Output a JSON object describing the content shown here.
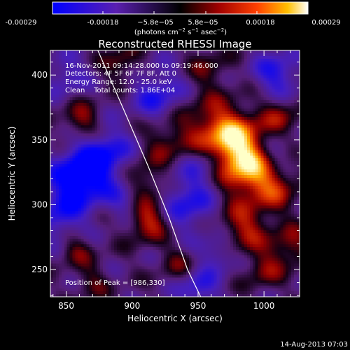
{
  "colorbar": {
    "tick_labels": [
      "-0.00029",
      "-0.00018",
      "−5.8e−05",
      "5.8e−05",
      "0.00018",
      "0.00029"
    ],
    "unit_prefix": "(photons cm",
    "unit_exp1": "−2",
    "unit_mid1": " s",
    "unit_exp2": "−1",
    "unit_mid2": " asec",
    "unit_exp3": "−2",
    "unit_suffix": ")"
  },
  "image": {
    "title": "Reconstructed RHESSI Image",
    "info_lines": [
      "16-Nov-2011 09:14:28.000 to 09:19:46.000",
      "Detectors: 4F 5F 6F 7F 8F, Att 0",
      "Energy Range: 12.0 - 25.0 keV",
      "Clean    Total counts: 1.86E+04"
    ],
    "peak_label": "Position of Peak = [986,330]"
  },
  "chart_data": {
    "type": "heatmap",
    "title": "Reconstructed RHESSI Image",
    "xlabel": "Heliocentric X (arcsec)",
    "ylabel": "Heliocentric Y (arcsec)",
    "xlim": [
      838,
      1027
    ],
    "ylim": [
      229,
      419
    ],
    "x_ticks": [
      850,
      900,
      950,
      1000
    ],
    "y_ticks": [
      250,
      300,
      350,
      400
    ],
    "peak": [
      986,
      330
    ],
    "colorbar_range": [
      -0.00029,
      0.00029
    ],
    "blobs": [
      {
        "x": 986,
        "y": 330,
        "a": 1.0,
        "s": 16
      },
      {
        "x": 975,
        "y": 352,
        "a": 0.7,
        "s": 14
      },
      {
        "x": 958,
        "y": 360,
        "a": 0.45,
        "s": 18
      },
      {
        "x": 1008,
        "y": 312,
        "a": 0.45,
        "s": 13
      },
      {
        "x": 1012,
        "y": 368,
        "a": 0.4,
        "s": 12
      },
      {
        "x": 912,
        "y": 290,
        "a": 0.75,
        "s": 12
      },
      {
        "x": 908,
        "y": 318,
        "a": 0.45,
        "s": 11
      },
      {
        "x": 925,
        "y": 348,
        "a": 0.35,
        "s": 12
      },
      {
        "x": 985,
        "y": 282,
        "a": 0.55,
        "s": 13
      },
      {
        "x": 1020,
        "y": 268,
        "a": 0.45,
        "s": 11
      },
      {
        "x": 1000,
        "y": 250,
        "a": 0.4,
        "s": 10
      },
      {
        "x": 862,
        "y": 364,
        "a": 0.5,
        "s": 10
      },
      {
        "x": 892,
        "y": 408,
        "a": 0.4,
        "s": 10
      },
      {
        "x": 935,
        "y": 255,
        "a": 0.3,
        "s": 10
      },
      {
        "x": 858,
        "y": 265,
        "a": 0.35,
        "s": 9
      },
      {
        "x": 870,
        "y": 240,
        "a": 0.3,
        "s": 9
      },
      {
        "x": 958,
        "y": 405,
        "a": 0.3,
        "s": 11
      },
      {
        "x": 860,
        "y": 320,
        "a": -0.95,
        "s": 16
      },
      {
        "x": 880,
        "y": 340,
        "a": -0.6,
        "s": 14
      },
      {
        "x": 898,
        "y": 302,
        "a": -0.45,
        "s": 11
      },
      {
        "x": 940,
        "y": 300,
        "a": -0.6,
        "s": 15
      },
      {
        "x": 955,
        "y": 330,
        "a": -0.45,
        "s": 12
      },
      {
        "x": 920,
        "y": 385,
        "a": -0.55,
        "s": 14
      },
      {
        "x": 1010,
        "y": 400,
        "a": -0.55,
        "s": 13
      },
      {
        "x": 1010,
        "y": 340,
        "a": -0.4,
        "s": 10
      },
      {
        "x": 950,
        "y": 235,
        "a": -0.5,
        "s": 11
      },
      {
        "x": 965,
        "y": 262,
        "a": -0.4,
        "s": 10
      },
      {
        "x": 845,
        "y": 290,
        "a": -0.5,
        "s": 12
      },
      {
        "x": 850,
        "y": 400,
        "a": -0.4,
        "s": 11
      }
    ],
    "limb_curve": [
      [
        874,
        419
      ],
      [
        895,
        370
      ],
      [
        912,
        330
      ],
      [
        928,
        290
      ],
      [
        942,
        250
      ],
      [
        952,
        229
      ]
    ]
  }
}
